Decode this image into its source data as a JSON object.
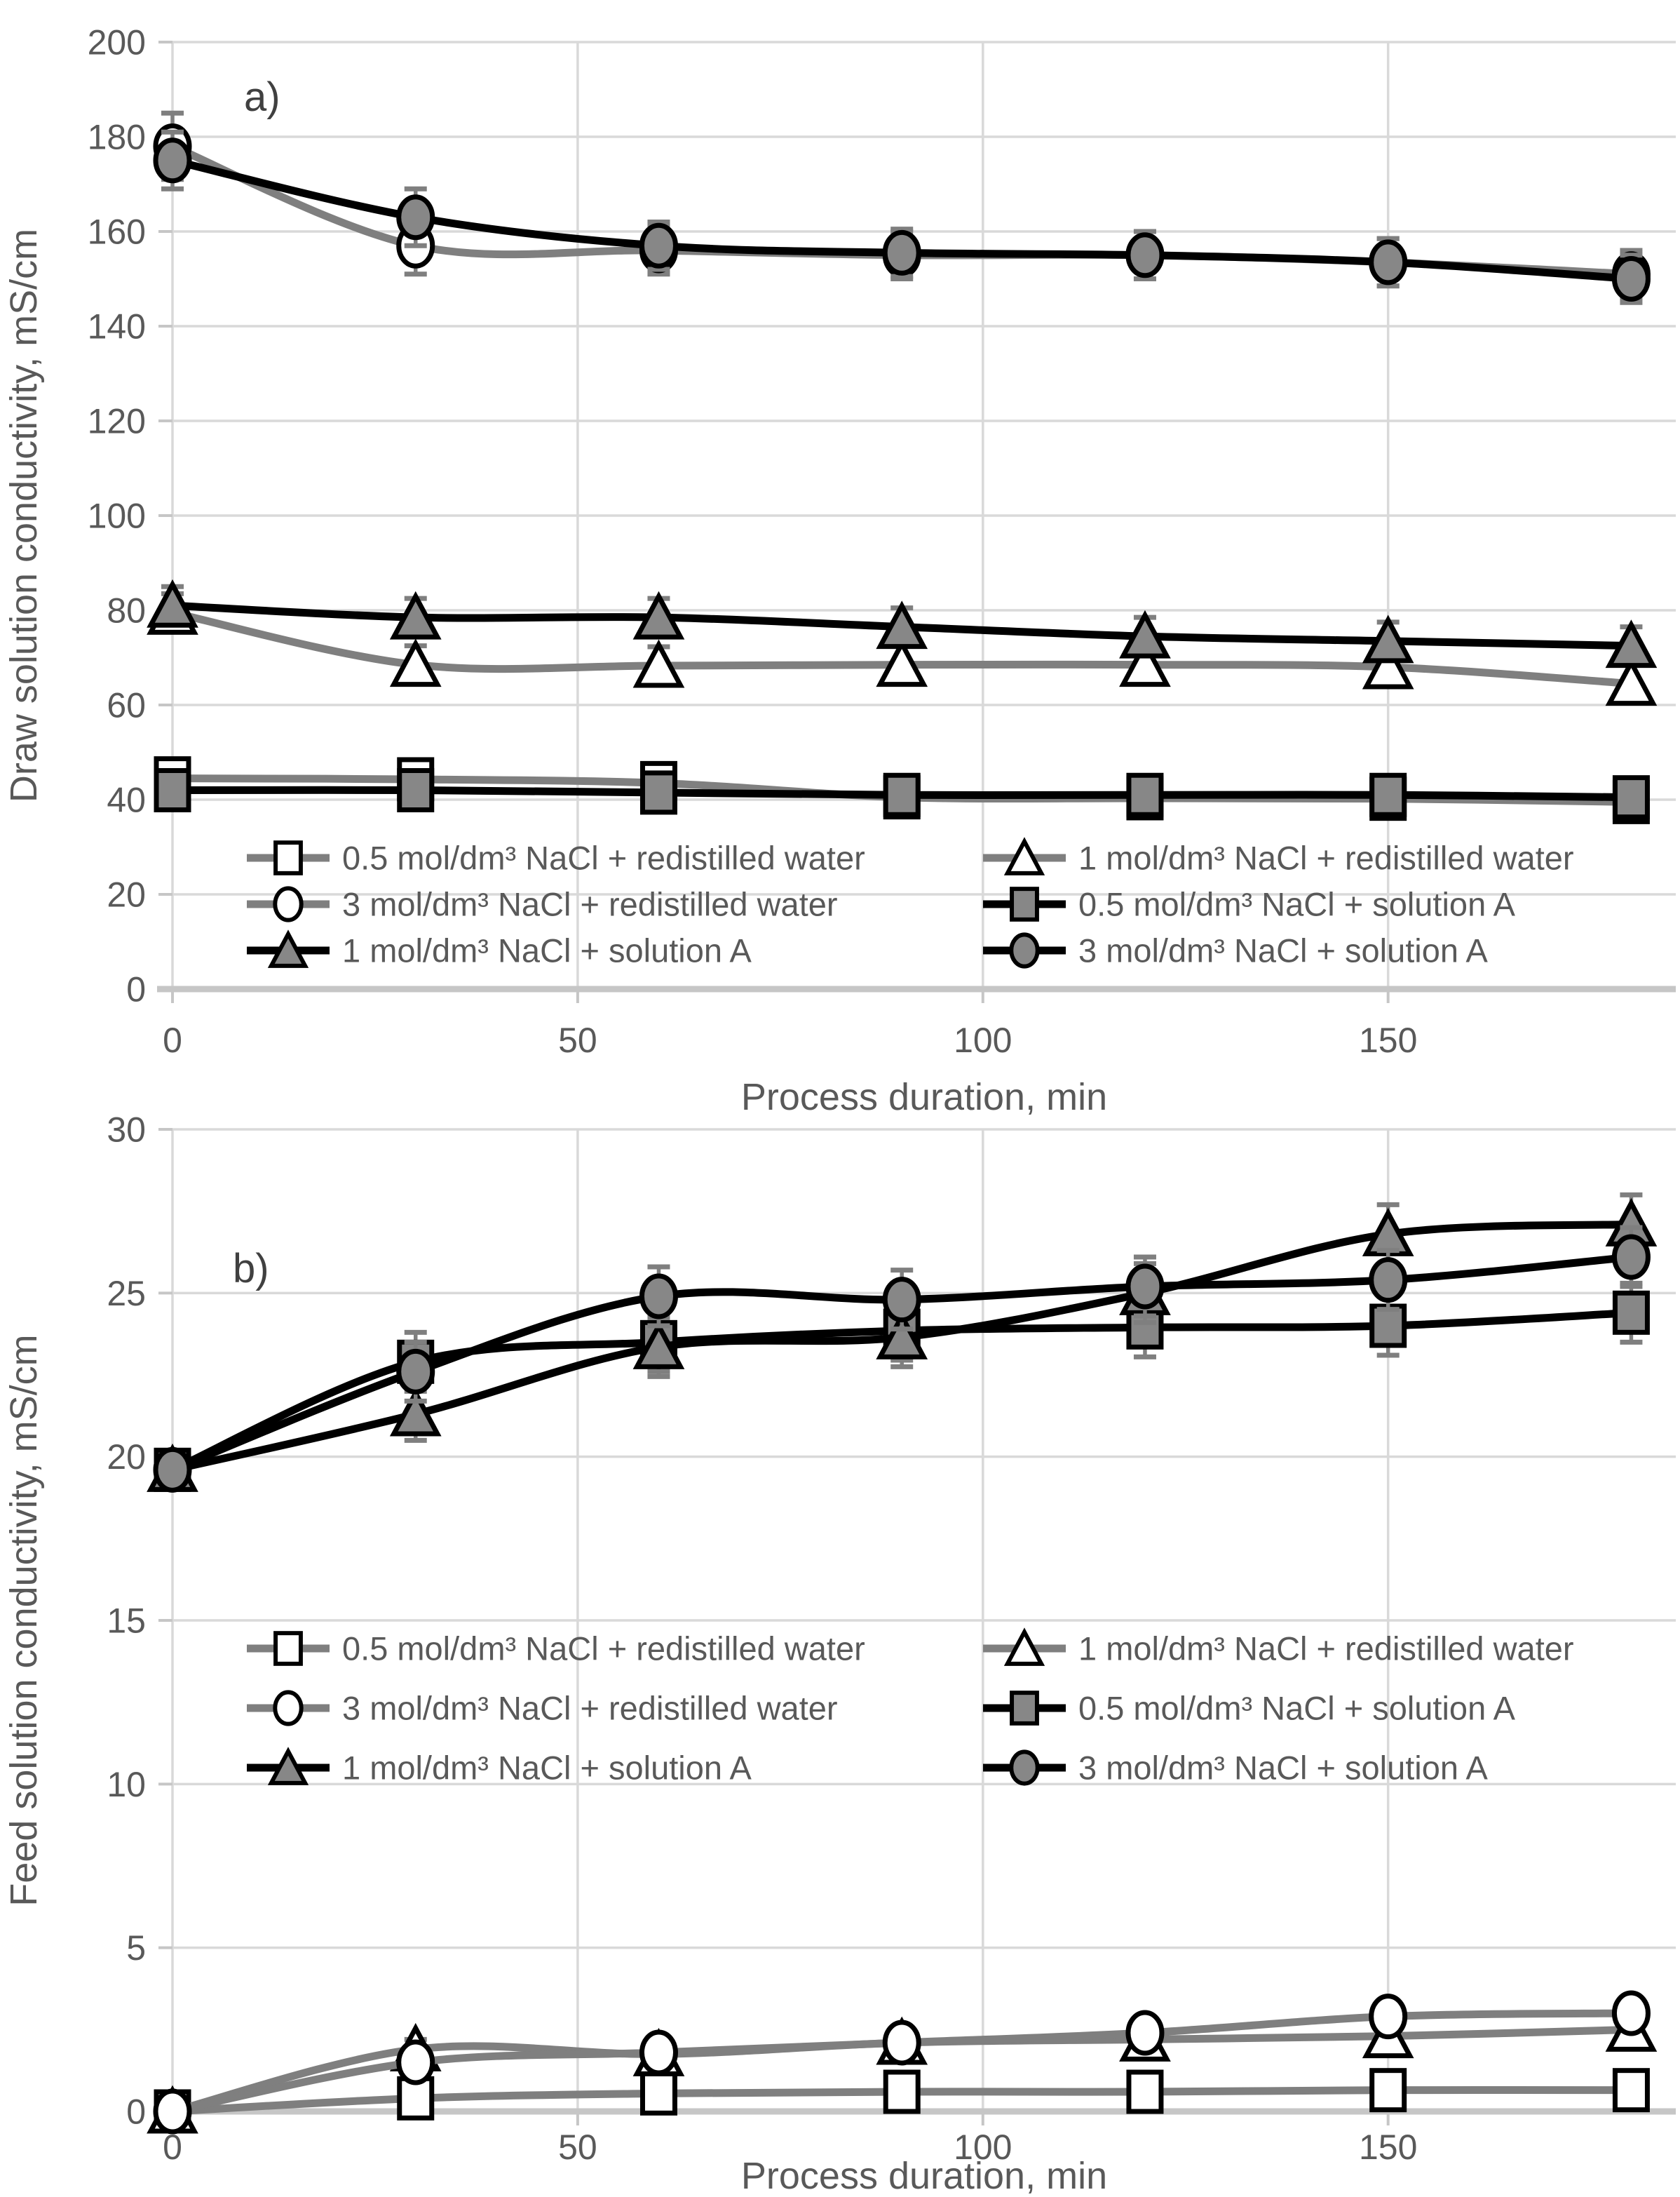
{
  "figure": {
    "description": "Two stacked line charts of conductivity vs process duration",
    "panel_a_label": "a)",
    "panel_b_label": "b)"
  },
  "chart_data": [
    {
      "type": "line",
      "panel_label": "a)",
      "xlabel": "Process duration, min",
      "ylabel": "Draw solution conductivity, mS/cm",
      "x": [
        0,
        30,
        60,
        90,
        120,
        150,
        180
      ],
      "xlim": [
        0,
        185.5
      ],
      "ylim": [
        0,
        200
      ],
      "xticks": [
        0,
        50,
        100,
        150
      ],
      "yticks": [
        0,
        20,
        40,
        60,
        80,
        100,
        120,
        140,
        160,
        180,
        200
      ],
      "grid": true,
      "legend_position": "inside-bottom",
      "series": [
        {
          "name": "0.5 mol/dm³ NaCl + redistilled water",
          "marker": "square",
          "fill": "open",
          "line_color": "#7f7f7f",
          "values": [
            44.5,
            44.3,
            43.5,
            40.5,
            40.3,
            40.2,
            39.5
          ],
          "errors": [
            4,
            4,
            4,
            4,
            4,
            4,
            4
          ]
        },
        {
          "name": "1 mol/dm³ NaCl + redistilled water",
          "marker": "triangle",
          "fill": "open",
          "line_color": "#7f7f7f",
          "values": [
            79.5,
            68.5,
            68.3,
            68.5,
            68.5,
            68,
            64.5
          ],
          "errors": [
            4,
            4,
            4,
            4,
            4,
            4,
            4
          ]
        },
        {
          "name": "3 mol/dm³ NaCl + redistilled water",
          "marker": "circle",
          "fill": "open",
          "line_color": "#7f7f7f",
          "values": [
            178,
            157,
            156,
            155,
            155,
            153.5,
            151
          ],
          "errors": [
            7,
            6,
            5,
            5,
            5,
            5,
            5
          ]
        },
        {
          "name": "0.5 mol/dm³ NaCl + solution A",
          "marker": "square",
          "fill": "filled",
          "line_color": "#000000",
          "values": [
            42,
            42,
            41.5,
            41,
            41,
            41,
            40.5
          ],
          "errors": [
            3,
            3,
            3,
            3,
            3,
            3,
            3
          ]
        },
        {
          "name": "1 mol/dm³ NaCl + solution A",
          "marker": "triangle",
          "fill": "filled",
          "line_color": "#000000",
          "values": [
            81,
            78.5,
            78.5,
            76.5,
            74.5,
            73.5,
            72.5
          ],
          "errors": [
            4,
            4,
            4,
            4,
            4,
            4,
            4
          ]
        },
        {
          "name": "3 mol/dm³ NaCl + solution A",
          "marker": "circle",
          "fill": "filled",
          "line_color": "#000000",
          "values": [
            175,
            163,
            157,
            155.5,
            155,
            153.5,
            150
          ],
          "errors": [
            6,
            6,
            5,
            5,
            5,
            5,
            5
          ]
        }
      ]
    },
    {
      "type": "line",
      "panel_label": "b)",
      "xlabel": "Process duration, min",
      "ylabel": "Feed solution conductivity, mS/cm",
      "x": [
        0,
        30,
        60,
        90,
        120,
        150,
        180
      ],
      "xlim": [
        0,
        185.5
      ],
      "ylim": [
        0,
        30
      ],
      "xticks": [
        0,
        50,
        100,
        150
      ],
      "yticks": [
        0,
        5,
        10,
        15,
        20,
        25,
        30
      ],
      "grid": true,
      "legend_position": "inside-middle",
      "series": [
        {
          "name": "0.5 mol/dm³ NaCl + redistilled water",
          "marker": "square",
          "fill": "open",
          "line_color": "#7f7f7f",
          "values": [
            0,
            0.4,
            0.55,
            0.6,
            0.6,
            0.65,
            0.65
          ],
          "errors": [
            0.05,
            0.15,
            0.15,
            0.15,
            0.15,
            0.15,
            0.15
          ]
        },
        {
          "name": "1 mol/dm³ NaCl + redistilled water",
          "marker": "triangle",
          "fill": "open",
          "line_color": "#7f7f7f",
          "values": [
            0,
            1.9,
            1.75,
            2.1,
            2.2,
            2.3,
            2.5
          ],
          "errors": [
            0.1,
            0.3,
            0.3,
            0.3,
            0.3,
            0.3,
            0.3
          ]
        },
        {
          "name": "3 mol/dm³ NaCl + redistilled water",
          "marker": "circle",
          "fill": "open",
          "line_color": "#7f7f7f",
          "values": [
            0,
            1.5,
            1.8,
            2.1,
            2.4,
            2.9,
            3.0
          ],
          "errors": [
            0.1,
            0.3,
            0.3,
            0.3,
            0.3,
            0.3,
            0.3
          ]
        },
        {
          "name": "0.5 mol/dm³ NaCl + solution A",
          "marker": "square",
          "fill": "filled",
          "line_color": "#000000",
          "values": [
            19.6,
            22.9,
            23.5,
            23.85,
            23.95,
            24.0,
            24.4
          ],
          "errors": [
            0.3,
            0.9,
            0.9,
            0.9,
            0.9,
            0.9,
            0.9
          ]
        },
        {
          "name": "1 mol/dm³ NaCl + solution A",
          "marker": "triangle",
          "fill": "filled",
          "line_color": "#000000",
          "values": [
            19.6,
            21.3,
            23.35,
            23.65,
            25.0,
            26.8,
            27.1
          ],
          "errors": [
            0.3,
            0.8,
            0.9,
            0.9,
            0.9,
            0.9,
            0.9
          ]
        },
        {
          "name": "3 mol/dm³ NaCl + solution A",
          "marker": "circle",
          "fill": "filled",
          "line_color": "#000000",
          "values": [
            19.6,
            22.6,
            24.9,
            24.8,
            25.2,
            25.4,
            26.1
          ],
          "errors": [
            0.4,
            0.9,
            0.9,
            0.9,
            0.9,
            0.9,
            0.9
          ]
        }
      ]
    }
  ],
  "style": {
    "grid_color": "#d9d9d9",
    "axis_color": "#c6c6c6",
    "error_bar_color": "#7f7f7f",
    "marker_fill_gray": "#878787",
    "marker_stroke": "#000000",
    "text_color": "#595959"
  }
}
